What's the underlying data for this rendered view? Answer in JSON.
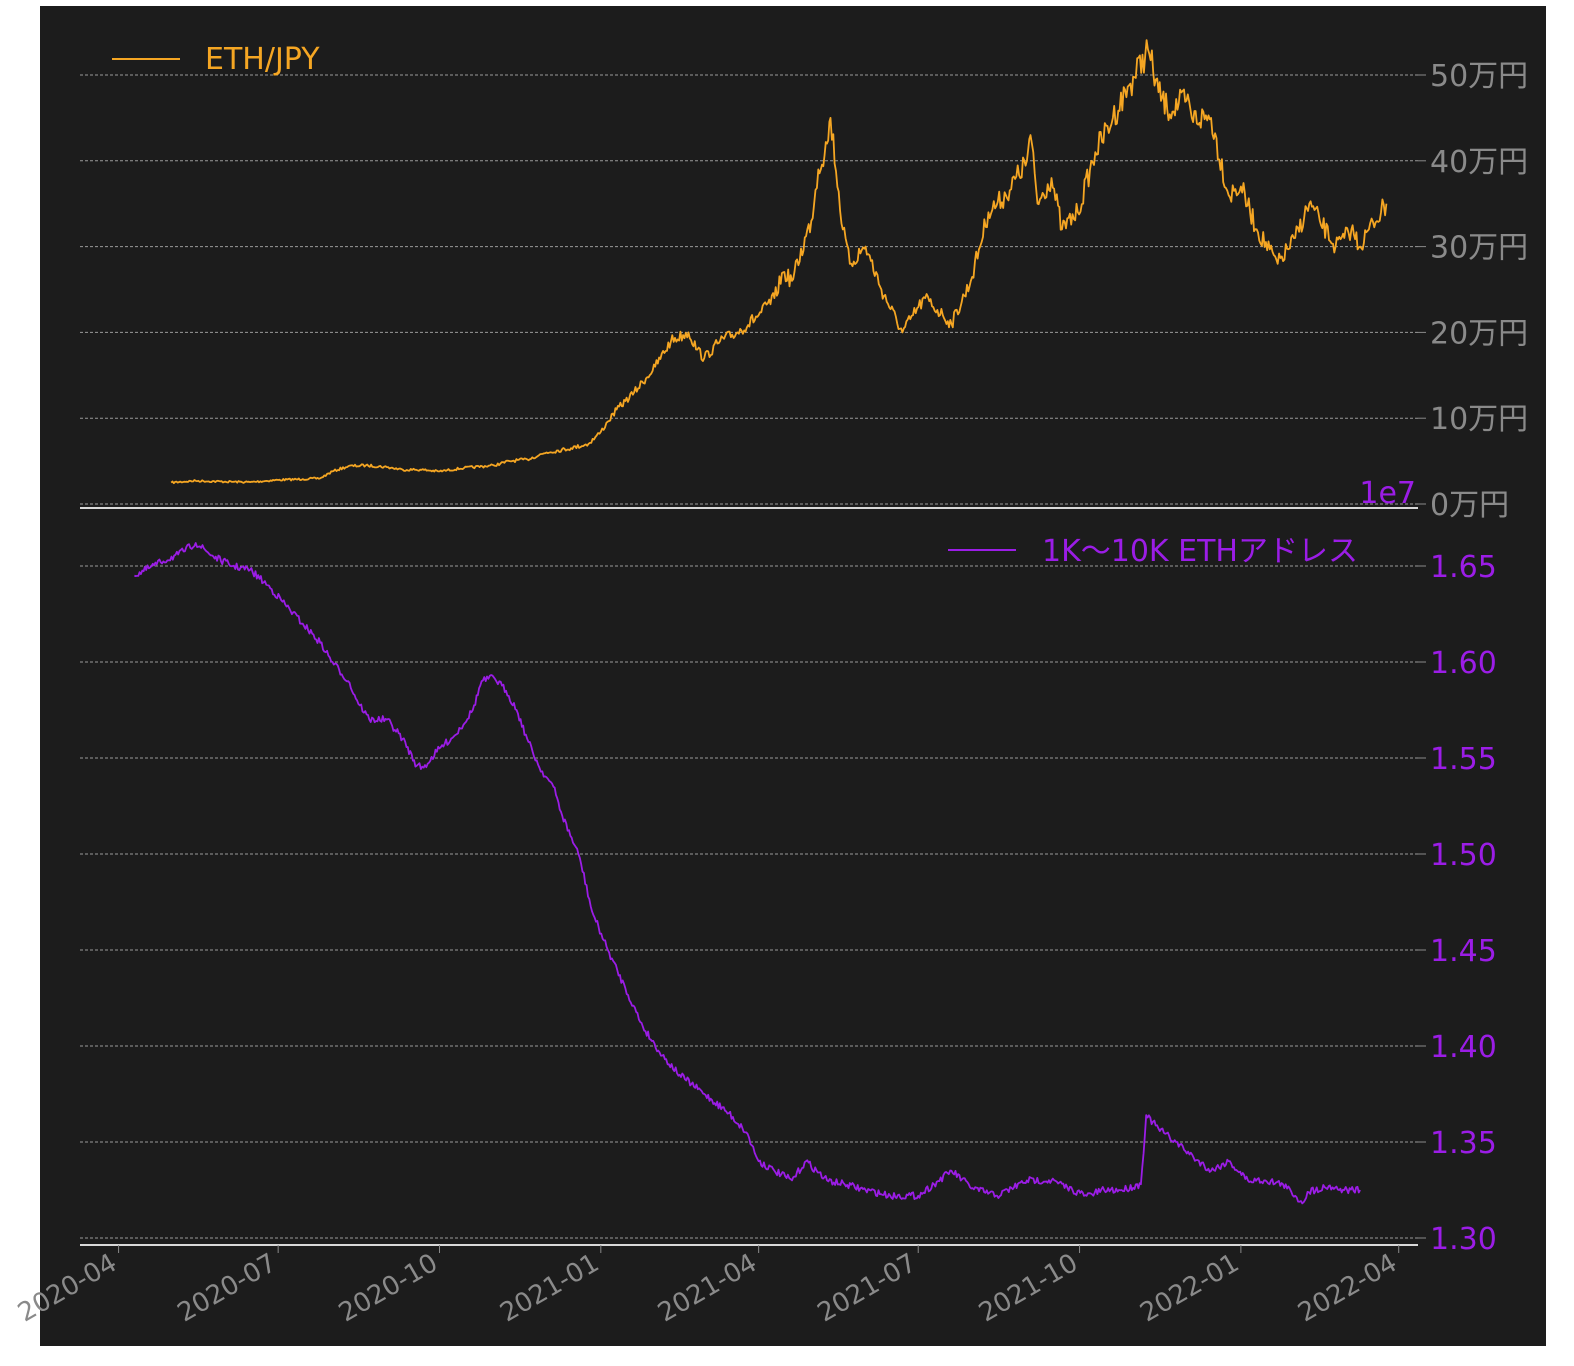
{
  "chart_data": [
    {
      "type": "line",
      "series": [
        {
          "name": "ETH/JPY",
          "color": "#f5a623"
        }
      ],
      "y_ticks": [
        "50万円",
        "40万円",
        "30万円",
        "20万円",
        "10万円",
        "0万円"
      ],
      "ylim_yen": [
        0,
        550000
      ],
      "grid": true,
      "legend": "top-left",
      "x": [
        "2020-05-01",
        "2020-05-15",
        "2020-06-01",
        "2020-06-15",
        "2020-07-01",
        "2020-07-15",
        "2020-07-25",
        "2020-08-01",
        "2020-08-10",
        "2020-08-20",
        "2020-09-01",
        "2020-09-10",
        "2020-09-20",
        "2020-10-01",
        "2020-10-15",
        "2020-11-01",
        "2020-11-10",
        "2020-11-20",
        "2020-12-01",
        "2020-12-15",
        "2020-12-25",
        "2021-01-01",
        "2021-01-05",
        "2021-01-10",
        "2021-01-15",
        "2021-01-20",
        "2021-02-01",
        "2021-02-10",
        "2021-02-20",
        "2021-02-25",
        "2021-03-01",
        "2021-03-10",
        "2021-03-20",
        "2021-04-01",
        "2021-04-10",
        "2021-04-15",
        "2021-04-20",
        "2021-05-01",
        "2021-05-05",
        "2021-05-10",
        "2021-05-12",
        "2021-05-19",
        "2021-05-23",
        "2021-06-01",
        "2021-06-10",
        "2021-06-22",
        "2021-06-28",
        "2021-07-05",
        "2021-07-15",
        "2021-07-20",
        "2021-07-31",
        "2021-08-10",
        "2021-08-20",
        "2021-09-01",
        "2021-09-03",
        "2021-09-07",
        "2021-09-15",
        "2021-09-21",
        "2021-09-30",
        "2021-10-10",
        "2021-10-20",
        "2021-10-30",
        "2021-11-09",
        "2021-11-15",
        "2021-11-20",
        "2021-12-01",
        "2021-12-04",
        "2021-12-15",
        "2021-12-25",
        "2022-01-01",
        "2022-01-10",
        "2022-01-22",
        "2022-02-01",
        "2022-02-09",
        "2022-02-15",
        "2022-02-24",
        "2022-03-01",
        "2022-03-05",
        "2022-03-10",
        "2022-03-15",
        "2022-03-25"
      ],
      "values_yen": [
        25000,
        27000,
        26000,
        25500,
        28000,
        29000,
        30000,
        38000,
        44000,
        45000,
        43000,
        40000,
        40000,
        38000,
        42000,
        45000,
        50000,
        52000,
        60000,
        65000,
        70000,
        84000,
        96000,
        110000,
        120000,
        130000,
        160000,
        190000,
        200000,
        180000,
        170000,
        190000,
        200000,
        220000,
        240000,
        270000,
        260000,
        330000,
        390000,
        420000,
        450000,
        320000,
        280000,
        300000,
        250000,
        200000,
        220000,
        240000,
        220000,
        210000,
        260000,
        340000,
        360000,
        400000,
        430000,
        350000,
        380000,
        320000,
        340000,
        410000,
        450000,
        490000,
        530000,
        480000,
        460000,
        470000,
        450000,
        450000,
        360000,
        370000,
        320000,
        280000,
        310000,
        350000,
        330000,
        300000,
        310000,
        320000,
        300000,
        320000,
        350000
      ]
    },
    {
      "type": "line",
      "series": [
        {
          "name": "1K〜10K ETHアドレス",
          "color": "#9b1de6"
        }
      ],
      "y_ticks": [
        "1.65",
        "1.60",
        "1.55",
        "1.50",
        "1.45",
        "1.40",
        "1.35",
        "1.30"
      ],
      "offset_text": "1e7",
      "ylim": [
        1.3,
        1.667
      ],
      "grid": true,
      "legend": "top-right",
      "x": [
        "2020-04-10",
        "2020-04-25",
        "2020-05-05",
        "2020-05-15",
        "2020-05-25",
        "2020-06-05",
        "2020-06-15",
        "2020-06-25",
        "2020-07-05",
        "2020-07-15",
        "2020-07-25",
        "2020-08-01",
        "2020-08-10",
        "2020-08-15",
        "2020-08-22",
        "2020-09-01",
        "2020-09-10",
        "2020-09-18",
        "2020-09-22",
        "2020-10-01",
        "2020-10-10",
        "2020-10-20",
        "2020-10-25",
        "2020-11-01",
        "2020-11-08",
        "2020-11-14",
        "2020-11-20",
        "2020-11-27",
        "2020-12-01",
        "2020-12-05",
        "2020-12-10",
        "2020-12-20",
        "2020-12-27",
        "2021-01-05",
        "2021-01-15",
        "2021-01-25",
        "2021-02-05",
        "2021-02-15",
        "2021-03-01",
        "2021-03-15",
        "2021-03-25",
        "2021-04-01",
        "2021-04-10",
        "2021-04-20",
        "2021-04-28",
        "2021-05-10",
        "2021-05-20",
        "2021-06-01",
        "2021-06-15",
        "2021-07-01",
        "2021-07-10",
        "2021-07-20",
        "2021-08-01",
        "2021-08-15",
        "2021-09-01",
        "2021-09-15",
        "2021-09-27",
        "2021-10-05",
        "2021-10-15",
        "2021-10-25",
        "2021-11-05",
        "2021-11-08",
        "2021-11-15",
        "2021-11-25",
        "2021-12-05",
        "2021-12-15",
        "2021-12-25",
        "2022-01-05",
        "2022-01-15",
        "2022-01-25",
        "2022-02-01",
        "2022-02-05",
        "2022-02-08",
        "2022-02-20",
        "2022-03-01",
        "2022-03-10"
      ],
      "values": [
        1.645,
        1.652,
        1.656,
        1.662,
        1.655,
        1.65,
        1.648,
        1.64,
        1.63,
        1.62,
        1.61,
        1.6,
        1.59,
        1.58,
        1.57,
        1.57,
        1.56,
        1.546,
        1.545,
        1.555,
        1.562,
        1.575,
        1.59,
        1.592,
        1.585,
        1.575,
        1.56,
        1.545,
        1.54,
        1.535,
        1.52,
        1.498,
        1.47,
        1.45,
        1.43,
        1.41,
        1.395,
        1.385,
        1.375,
        1.365,
        1.355,
        1.34,
        1.335,
        1.33,
        1.34,
        1.33,
        1.328,
        1.325,
        1.322,
        1.322,
        1.328,
        1.335,
        1.326,
        1.322,
        1.33,
        1.33,
        1.325,
        1.322,
        1.325,
        1.325,
        1.328,
        1.364,
        1.357,
        1.35,
        1.342,
        1.335,
        1.34,
        1.33,
        1.33,
        1.328,
        1.322,
        1.318,
        1.324,
        1.327,
        1.325,
        1.325
      ]
    }
  ],
  "x_axis": {
    "ticks": [
      "2020-04",
      "2020-07",
      "2020-10",
      "2021-01",
      "2021-04",
      "2021-07",
      "2021-10",
      "2022-01",
      "2022-04"
    ]
  },
  "colors": {
    "background": "#1c1c1c",
    "axis_text": "#8a8a8a",
    "eth": "#f5a623",
    "addr": "#9b1de6"
  }
}
